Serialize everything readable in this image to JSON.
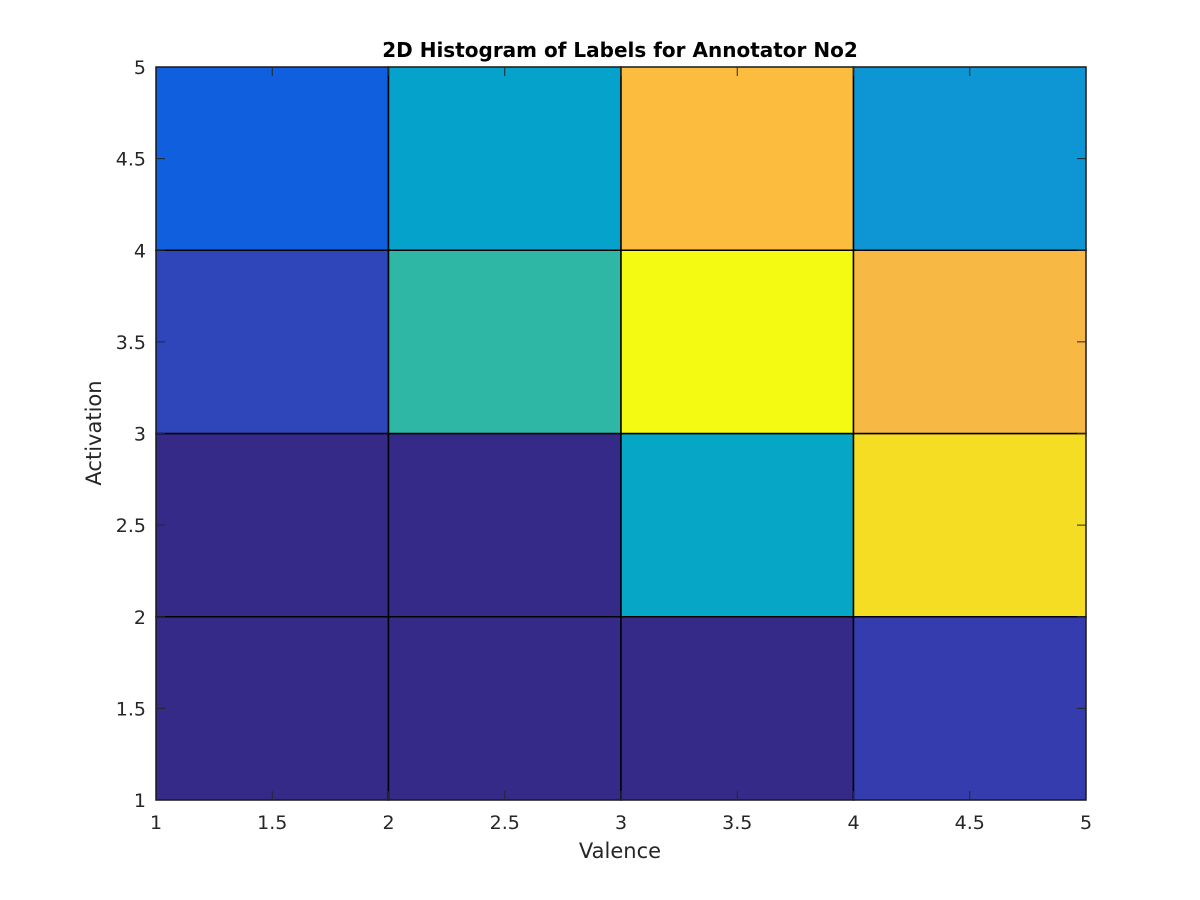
{
  "chart_data": {
    "type": "heatmap",
    "title": "2D Histogram of Labels for Annotator No2",
    "xlabel": "Valence",
    "ylabel": "Activation",
    "xlim": [
      1,
      5
    ],
    "ylim": [
      1,
      5
    ],
    "x_ticks": [
      "1",
      "1.5",
      "2",
      "2.5",
      "3",
      "3.5",
      "4",
      "4.5",
      "5"
    ],
    "y_ticks": [
      "1",
      "1.5",
      "2",
      "2.5",
      "3",
      "3.5",
      "4",
      "4.5",
      "5"
    ],
    "grid": false,
    "colormap": "parula",
    "x_bin_edges": [
      1,
      2,
      3,
      4,
      5
    ],
    "y_bin_edges": [
      1,
      2,
      3,
      4,
      5
    ],
    "cells": [
      {
        "x": [
          1,
          2
        ],
        "y": [
          1,
          2
        ],
        "value": 0.0,
        "color": "#352a87"
      },
      {
        "x": [
          2,
          3
        ],
        "y": [
          1,
          2
        ],
        "value": 0.0,
        "color": "#352a87"
      },
      {
        "x": [
          3,
          4
        ],
        "y": [
          1,
          2
        ],
        "value": 0.0,
        "color": "#352a87"
      },
      {
        "x": [
          4,
          5
        ],
        "y": [
          1,
          2
        ],
        "value": 0.05,
        "color": "#353dae"
      },
      {
        "x": [
          1,
          2
        ],
        "y": [
          2,
          3
        ],
        "value": 0.0,
        "color": "#352a87"
      },
      {
        "x": [
          2,
          3
        ],
        "y": [
          2,
          3
        ],
        "value": 0.0,
        "color": "#352a87"
      },
      {
        "x": [
          3,
          4
        ],
        "y": [
          2,
          3
        ],
        "value": 0.45,
        "color": "#06a7c6"
      },
      {
        "x": [
          4,
          5
        ],
        "y": [
          2,
          3
        ],
        "value": 0.93,
        "color": "#f4dd22"
      },
      {
        "x": [
          1,
          2
        ],
        "y": [
          3,
          4
        ],
        "value": 0.06,
        "color": "#2f45ba"
      },
      {
        "x": [
          2,
          3
        ],
        "y": [
          3,
          4
        ],
        "value": 0.55,
        "color": "#2eb7a4"
      },
      {
        "x": [
          3,
          4
        ],
        "y": [
          3,
          4
        ],
        "value": 1.0,
        "color": "#f5fa12"
      },
      {
        "x": [
          4,
          5
        ],
        "y": [
          3,
          4
        ],
        "value": 0.84,
        "color": "#f8b844"
      },
      {
        "x": [
          1,
          2
        ],
        "y": [
          4,
          5
        ],
        "value": 0.18,
        "color": "#0f5fdf"
      },
      {
        "x": [
          2,
          3
        ],
        "y": [
          4,
          5
        ],
        "value": 0.42,
        "color": "#05a2cb"
      },
      {
        "x": [
          3,
          4
        ],
        "y": [
          4,
          5
        ],
        "value": 0.82,
        "color": "#fcbd3f"
      },
      {
        "x": [
          4,
          5
        ],
        "y": [
          4,
          5
        ],
        "value": 0.38,
        "color": "#0e96d4"
      }
    ]
  }
}
